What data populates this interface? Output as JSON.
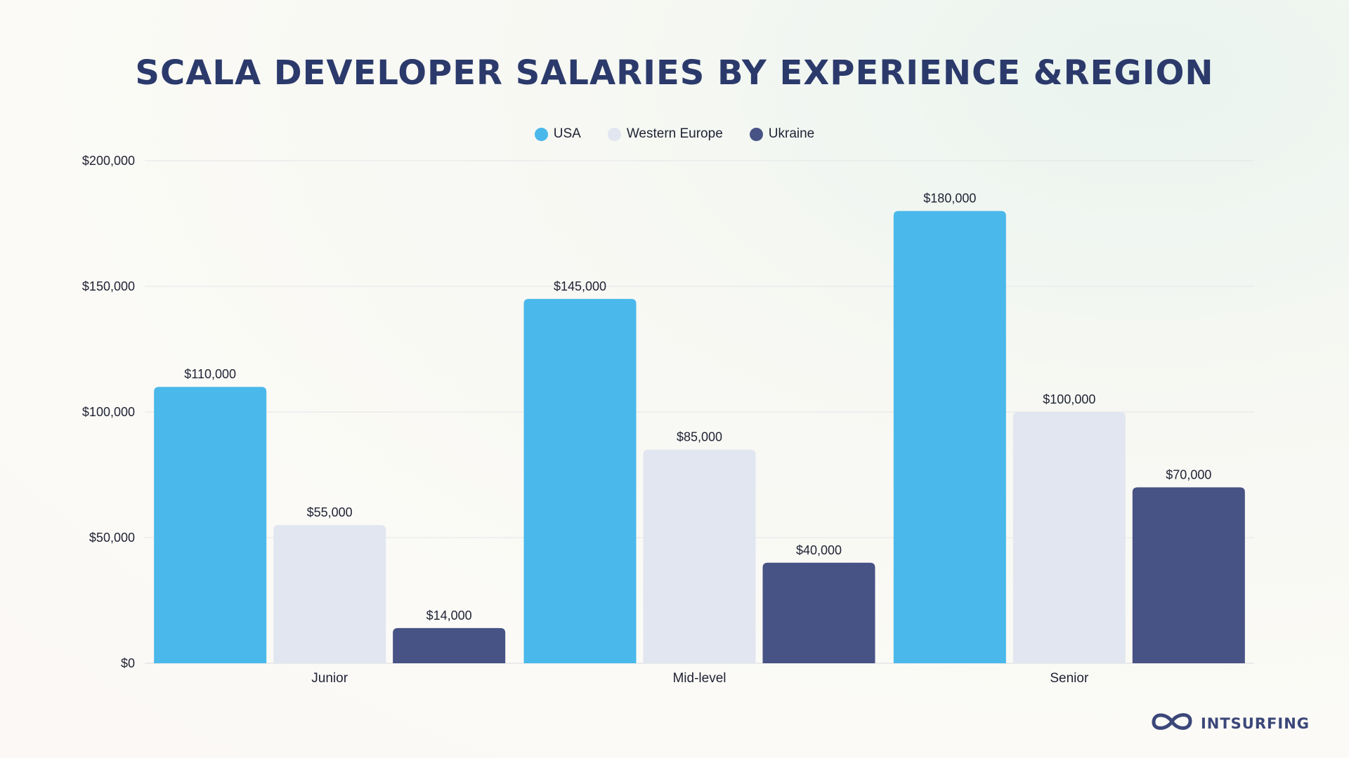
{
  "chart_data": {
    "type": "bar",
    "title": "SCALA DEVELOPER SALARIES BY EXPERIENCE &REGION",
    "categories": [
      "Junior",
      "Mid-level",
      "Senior"
    ],
    "series": [
      {
        "name": "USA",
        "color": "#4ab8ea",
        "values": [
          110000,
          145000,
          180000
        ],
        "labels": [
          "$110,000",
          "$145,000",
          "$180,000"
        ]
      },
      {
        "name": "Western Europe",
        "color": "#e1e6f0",
        "values": [
          55000,
          85000,
          100000
        ],
        "labels": [
          "$55,000",
          "$85,000",
          "$100,000"
        ]
      },
      {
        "name": "Ukraine",
        "color": "#475285",
        "values": [
          14000,
          40000,
          70000
        ],
        "labels": [
          "$14,000",
          "$40,000",
          "$70,000"
        ]
      }
    ],
    "ylim": [
      0,
      200000
    ],
    "yticks": [
      0,
      50000,
      100000,
      150000,
      200000
    ],
    "ytick_labels": [
      "$0",
      "$50,000",
      "$100,000",
      "$150,000",
      "$200,000"
    ],
    "grid": true,
    "legend_position": "top-center",
    "xlabel": "",
    "ylabel": ""
  },
  "logo": {
    "name": "INTSURFING",
    "icon": "infinity-icon",
    "color": "#3b4779"
  }
}
